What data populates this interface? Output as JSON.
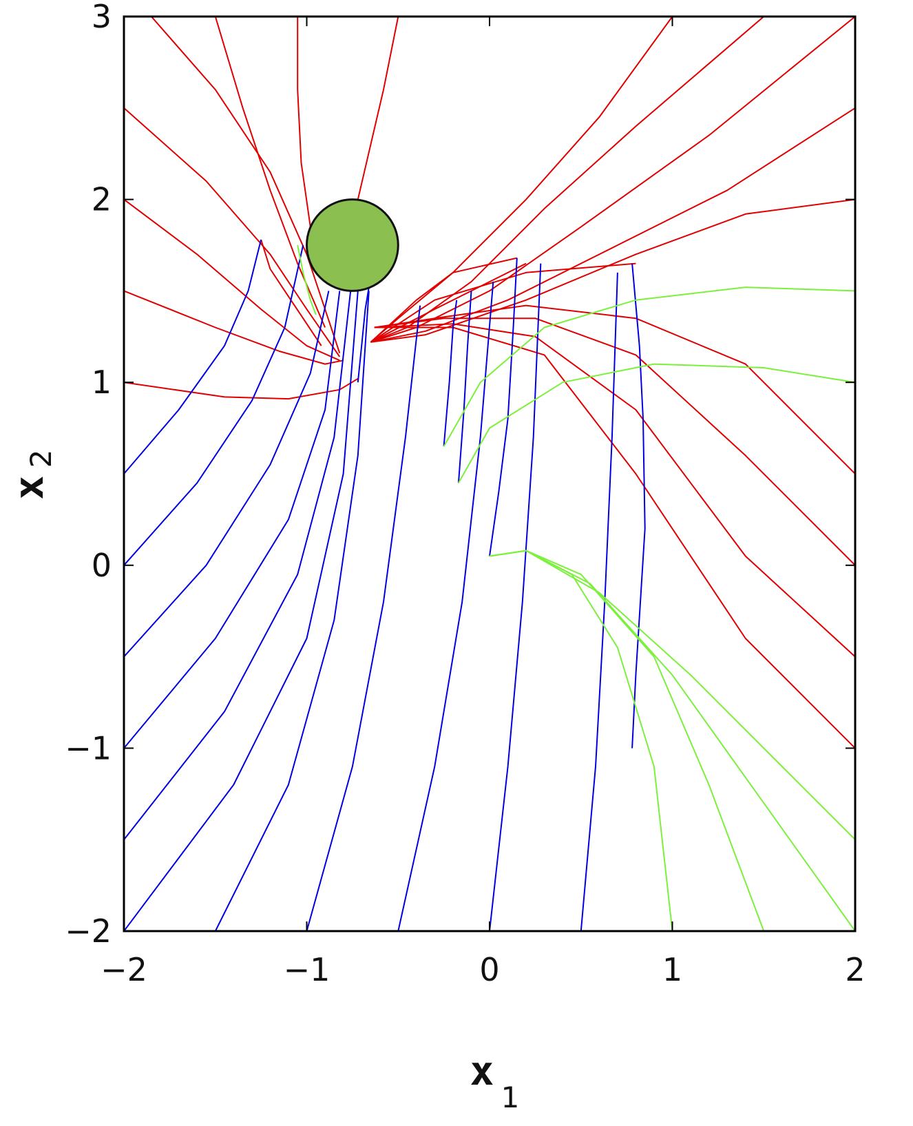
{
  "chart_data": {
    "type": "line",
    "title": "",
    "xlabel": "x",
    "xlabel_sub": "1",
    "ylabel": "x",
    "ylabel_sub": "2",
    "xlim": [
      -2,
      2
    ],
    "ylim": [
      -2,
      3
    ],
    "x_ticks": [
      -2,
      -1,
      0,
      1,
      2
    ],
    "y_ticks": [
      -2,
      -1,
      0,
      1,
      2,
      3
    ],
    "x_tick_labels": [
      "−2",
      "−1",
      "0",
      "1",
      "2"
    ],
    "y_tick_labels": [
      "−2",
      "−1",
      "0",
      "1",
      "2",
      "3"
    ],
    "grid": false,
    "legend": "none",
    "colors": {
      "red": "#e00000",
      "blue": "#0000e0",
      "green": "#7cf03c",
      "obstacle_fill": "#8bbf4f",
      "obstacle_edge": "#111111"
    },
    "obstacle": {
      "shape": "circle",
      "center": [
        -0.75,
        1.75
      ],
      "radius": 0.25
    },
    "series": [
      {
        "color": "red",
        "points": [
          [
            -2,
            1.0
          ],
          [
            -1.45,
            0.92
          ],
          [
            -1.1,
            0.91
          ],
          [
            -0.82,
            0.96
          ],
          [
            -0.72,
            1.02
          ]
        ]
      },
      {
        "color": "red",
        "points": [
          [
            -2,
            1.5
          ],
          [
            -1.5,
            1.3
          ],
          [
            -1.15,
            1.17
          ],
          [
            -0.9,
            1.1
          ],
          [
            -0.8,
            1.12
          ]
        ]
      },
      {
        "color": "red",
        "points": [
          [
            -2,
            2.0
          ],
          [
            -1.6,
            1.7
          ],
          [
            -1.25,
            1.4
          ],
          [
            -1.0,
            1.2
          ],
          [
            -0.82,
            1.12
          ]
        ]
      },
      {
        "color": "red",
        "points": [
          [
            -2,
            2.5
          ],
          [
            -1.55,
            2.1
          ],
          [
            -1.2,
            1.7
          ],
          [
            -1.0,
            1.4
          ],
          [
            -0.82,
            1.14
          ]
        ]
      },
      {
        "color": "red",
        "points": [
          [
            -1.85,
            3.0
          ],
          [
            -1.5,
            2.6
          ],
          [
            -1.2,
            2.15
          ],
          [
            -1.0,
            1.7
          ],
          [
            -0.82,
            1.16
          ]
        ]
      },
      {
        "color": "red",
        "points": [
          [
            -1.5,
            3.0
          ],
          [
            -1.35,
            2.5
          ],
          [
            -1.2,
            2.05
          ],
          [
            -1.05,
            1.65
          ],
          [
            -0.9,
            1.3
          ]
        ]
      },
      {
        "color": "red",
        "points": [
          [
            -1.25,
            1.78
          ],
          [
            -1.2,
            1.62
          ],
          [
            -1.12,
            1.5
          ],
          [
            -1.02,
            1.35
          ],
          [
            -0.92,
            1.2
          ]
        ]
      },
      {
        "color": "red",
        "points": [
          [
            -1.05,
            3.0
          ],
          [
            -1.05,
            2.6
          ],
          [
            -1.03,
            2.2
          ],
          [
            -0.98,
            1.85
          ],
          [
            -0.92,
            1.65
          ]
        ]
      },
      {
        "color": "red",
        "points": [
          [
            -0.5,
            3.0
          ],
          [
            -0.58,
            2.6
          ],
          [
            -0.65,
            2.3
          ],
          [
            -0.72,
            2.0
          ]
        ]
      },
      {
        "color": "red",
        "points": [
          [
            -0.65,
            1.22
          ],
          [
            -0.5,
            1.35
          ],
          [
            -0.2,
            1.6
          ],
          [
            0.2,
            2.0
          ],
          [
            0.6,
            2.45
          ],
          [
            1.0,
            3.0
          ]
        ]
      },
      {
        "color": "red",
        "points": [
          [
            -0.65,
            1.22
          ],
          [
            -0.45,
            1.3
          ],
          [
            -0.1,
            1.55
          ],
          [
            0.3,
            1.95
          ],
          [
            0.8,
            2.4
          ],
          [
            1.5,
            3.0
          ]
        ]
      },
      {
        "color": "red",
        "points": [
          [
            -0.65,
            1.22
          ],
          [
            -0.4,
            1.3
          ],
          [
            0.0,
            1.5
          ],
          [
            0.5,
            1.85
          ],
          [
            1.2,
            2.35
          ],
          [
            2.0,
            3.0
          ]
        ]
      },
      {
        "color": "red",
        "points": [
          [
            -0.65,
            1.22
          ],
          [
            -0.35,
            1.28
          ],
          [
            0.1,
            1.45
          ],
          [
            0.7,
            1.75
          ],
          [
            1.3,
            2.05
          ],
          [
            2.0,
            2.5
          ]
        ]
      },
      {
        "color": "red",
        "points": [
          [
            -0.65,
            1.22
          ],
          [
            -0.35,
            1.26
          ],
          [
            0.2,
            1.45
          ],
          [
            0.8,
            1.7
          ],
          [
            1.4,
            1.92
          ],
          [
            2.0,
            2.0
          ]
        ]
      },
      {
        "color": "red",
        "points": [
          [
            -0.65,
            1.22
          ],
          [
            -0.3,
            1.4
          ],
          [
            0.0,
            1.55
          ],
          [
            0.2,
            1.65
          ]
        ]
      },
      {
        "color": "red",
        "points": [
          [
            -0.65,
            1.22
          ],
          [
            -0.3,
            1.45
          ],
          [
            0.2,
            1.6
          ],
          [
            0.8,
            1.65
          ]
        ]
      },
      {
        "color": "red",
        "points": [
          [
            -0.65,
            1.22
          ],
          [
            -0.4,
            1.45
          ],
          [
            -0.2,
            1.6
          ],
          [
            0.15,
            1.68
          ]
        ]
      },
      {
        "color": "red",
        "points": [
          [
            -0.63,
            1.3
          ],
          [
            -0.3,
            1.35
          ],
          [
            0.2,
            1.42
          ],
          [
            0.8,
            1.35
          ],
          [
            1.4,
            1.1
          ],
          [
            2.0,
            0.5
          ]
        ]
      },
      {
        "color": "red",
        "points": [
          [
            -0.63,
            1.3
          ],
          [
            -0.25,
            1.35
          ],
          [
            0.25,
            1.35
          ],
          [
            0.8,
            1.15
          ],
          [
            1.4,
            0.6
          ],
          [
            2.0,
            0.0
          ]
        ]
      },
      {
        "color": "red",
        "points": [
          [
            -0.63,
            1.3
          ],
          [
            -0.2,
            1.32
          ],
          [
            0.25,
            1.25
          ],
          [
            0.8,
            0.85
          ],
          [
            1.4,
            0.05
          ],
          [
            2.0,
            -0.5
          ]
        ]
      },
      {
        "color": "red",
        "points": [
          [
            -0.63,
            1.3
          ],
          [
            -0.2,
            1.3
          ],
          [
            0.3,
            1.15
          ],
          [
            0.8,
            0.5
          ],
          [
            1.4,
            -0.4
          ],
          [
            2.0,
            -1.0
          ]
        ]
      },
      {
        "color": "blue",
        "points": [
          [
            -2.0,
            0.5
          ],
          [
            -1.7,
            0.85
          ],
          [
            -1.45,
            1.2
          ],
          [
            -1.32,
            1.5
          ],
          [
            -1.25,
            1.78
          ]
        ]
      },
      {
        "color": "blue",
        "points": [
          [
            -2.0,
            0.0
          ],
          [
            -1.6,
            0.45
          ],
          [
            -1.3,
            0.9
          ],
          [
            -1.12,
            1.3
          ],
          [
            -1.02,
            1.75
          ]
        ]
      },
      {
        "color": "blue",
        "points": [
          [
            -2.0,
            -0.5
          ],
          [
            -1.55,
            0.0
          ],
          [
            -1.2,
            0.55
          ],
          [
            -0.98,
            1.05
          ],
          [
            -0.88,
            1.5
          ]
        ]
      },
      {
        "color": "blue",
        "points": [
          [
            -2.0,
            -1.0
          ],
          [
            -1.5,
            -0.4
          ],
          [
            -1.1,
            0.25
          ],
          [
            -0.9,
            0.85
          ],
          [
            -0.82,
            1.5
          ]
        ]
      },
      {
        "color": "blue",
        "points": [
          [
            -2.0,
            -1.5
          ],
          [
            -1.45,
            -0.8
          ],
          [
            -1.05,
            -0.05
          ],
          [
            -0.85,
            0.7
          ],
          [
            -0.76,
            1.5
          ]
        ]
      },
      {
        "color": "blue",
        "points": [
          [
            -2.0,
            -2.0
          ],
          [
            -1.4,
            -1.2
          ],
          [
            -1.0,
            -0.4
          ],
          [
            -0.8,
            0.5
          ],
          [
            -0.72,
            1.5
          ]
        ]
      },
      {
        "color": "blue",
        "points": [
          [
            -1.5,
            -2.0
          ],
          [
            -1.1,
            -1.2
          ],
          [
            -0.85,
            -0.3
          ],
          [
            -0.72,
            0.6
          ],
          [
            -0.66,
            1.5
          ]
        ]
      },
      {
        "color": "blue",
        "points": [
          [
            -1.0,
            -2.0
          ],
          [
            -0.75,
            -1.1
          ],
          [
            -0.58,
            -0.2
          ],
          [
            -0.46,
            0.7
          ],
          [
            -0.38,
            1.42
          ]
        ]
      },
      {
        "color": "blue",
        "points": [
          [
            -0.5,
            -2.0
          ],
          [
            -0.3,
            -1.1
          ],
          [
            -0.15,
            -0.2
          ],
          [
            -0.05,
            0.7
          ],
          [
            0.02,
            1.55
          ]
        ]
      },
      {
        "color": "blue",
        "points": [
          [
            0.0,
            -2.0
          ],
          [
            0.1,
            -1.1
          ],
          [
            0.18,
            -0.2
          ],
          [
            0.24,
            0.7
          ],
          [
            0.28,
            1.65
          ]
        ]
      },
      {
        "color": "blue",
        "points": [
          [
            0.5,
            -2.0
          ],
          [
            0.58,
            -1.1
          ],
          [
            0.63,
            -0.2
          ],
          [
            0.67,
            0.7
          ],
          [
            0.7,
            1.6
          ]
        ]
      },
      {
        "color": "blue",
        "points": [
          [
            0.78,
            1.65
          ],
          [
            0.82,
            1.2
          ],
          [
            0.84,
            0.8
          ],
          [
            0.85,
            0.2
          ],
          [
            0.8,
            -0.6
          ],
          [
            0.78,
            -1.0
          ]
        ]
      },
      {
        "color": "blue",
        "points": [
          [
            0.0,
            0.05
          ],
          [
            0.05,
            0.4
          ],
          [
            0.1,
            0.8
          ],
          [
            0.13,
            1.3
          ],
          [
            0.15,
            1.68
          ]
        ]
      },
      {
        "color": "blue",
        "points": [
          [
            -0.25,
            0.65
          ],
          [
            -0.22,
            1.0
          ],
          [
            -0.2,
            1.3
          ],
          [
            -0.18,
            1.45
          ]
        ]
      },
      {
        "color": "blue",
        "points": [
          [
            -0.17,
            0.45
          ],
          [
            -0.14,
            0.85
          ],
          [
            -0.12,
            1.2
          ],
          [
            -0.1,
            1.5
          ]
        ]
      },
      {
        "color": "blue",
        "points": [
          [
            -0.72,
            1.0
          ],
          [
            -0.7,
            1.2
          ],
          [
            -0.68,
            1.4
          ],
          [
            -0.66,
            1.52
          ]
        ]
      },
      {
        "color": "green",
        "points": [
          [
            -1.05,
            1.75
          ],
          [
            -1.02,
            1.6
          ],
          [
            -0.98,
            1.45
          ],
          [
            -0.95,
            1.37
          ]
        ]
      },
      {
        "color": "green",
        "points": [
          [
            -0.25,
            0.65
          ],
          [
            -0.05,
            1.0
          ],
          [
            0.3,
            1.3
          ],
          [
            0.8,
            1.45
          ],
          [
            1.4,
            1.52
          ],
          [
            2.0,
            1.5
          ]
        ]
      },
      {
        "color": "green",
        "points": [
          [
            -0.17,
            0.45
          ],
          [
            0.0,
            0.75
          ],
          [
            0.4,
            1.0
          ],
          [
            0.9,
            1.1
          ],
          [
            1.5,
            1.08
          ],
          [
            2.0,
            1.0
          ]
        ]
      },
      {
        "color": "green",
        "points": [
          [
            0.0,
            0.05
          ],
          [
            0.2,
            0.08
          ],
          [
            0.45,
            -0.05
          ],
          [
            0.7,
            -0.45
          ],
          [
            0.9,
            -1.1
          ],
          [
            1.0,
            -2.0
          ]
        ]
      },
      {
        "color": "green",
        "points": [
          [
            0.0,
            0.05
          ],
          [
            0.2,
            0.08
          ],
          [
            0.5,
            -0.05
          ],
          [
            0.9,
            -0.5
          ],
          [
            1.2,
            -1.2
          ],
          [
            1.5,
            -2.0
          ]
        ]
      },
      {
        "color": "green",
        "points": [
          [
            0.0,
            0.05
          ],
          [
            0.2,
            0.08
          ],
          [
            0.55,
            -0.1
          ],
          [
            1.0,
            -0.6
          ],
          [
            1.5,
            -1.3
          ],
          [
            2.0,
            -2.0
          ]
        ]
      },
      {
        "color": "green",
        "points": [
          [
            0.0,
            0.05
          ],
          [
            0.2,
            0.08
          ],
          [
            0.6,
            -0.15
          ],
          [
            1.1,
            -0.6
          ],
          [
            1.6,
            -1.1
          ],
          [
            2.0,
            -1.5
          ]
        ]
      }
    ]
  }
}
